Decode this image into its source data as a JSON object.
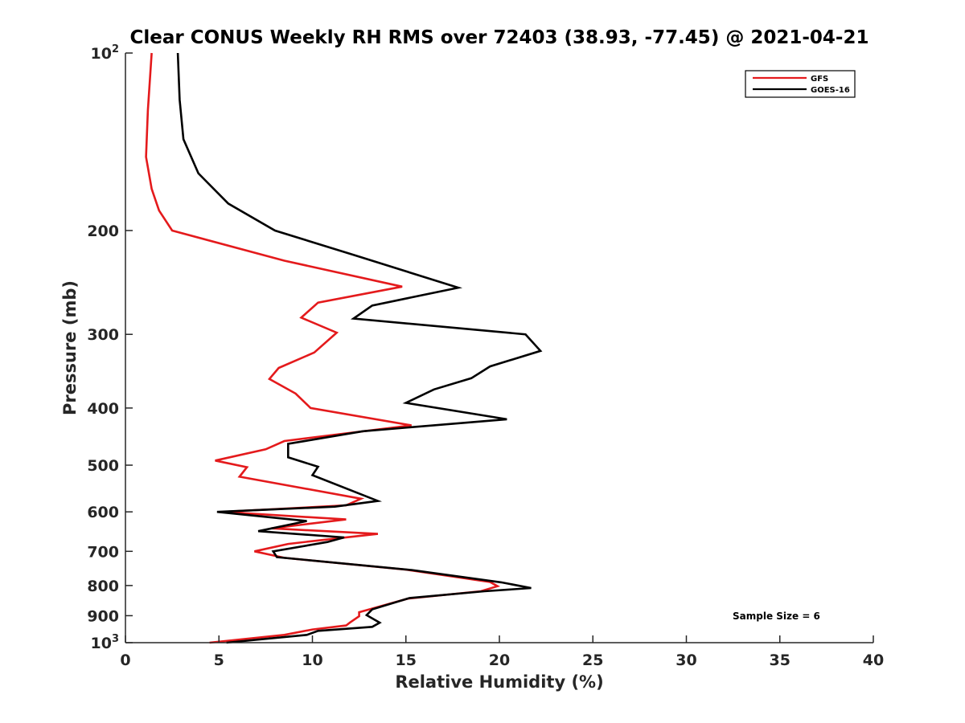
{
  "chart_data": {
    "type": "line",
    "title": "Clear CONUS Weekly RH RMS over 72403 (38.93, -77.45) @ 2021-04-21",
    "xlabel": "Relative Humidity (%)",
    "ylabel": "Pressure (mb)",
    "xlim": [
      0,
      40
    ],
    "ylim": [
      100,
      1000
    ],
    "y_scale": "log",
    "y_reversed": true,
    "x_ticks": [
      "0",
      "5",
      "10",
      "15",
      "20",
      "25",
      "30",
      "35",
      "40"
    ],
    "y_ticks": [
      {
        "value": 100,
        "label": "10",
        "sup": "2"
      },
      {
        "value": 200,
        "label": "200",
        "sup": ""
      },
      {
        "value": 300,
        "label": "300",
        "sup": ""
      },
      {
        "value": 400,
        "label": "400",
        "sup": ""
      },
      {
        "value": 500,
        "label": "500",
        "sup": ""
      },
      {
        "value": 600,
        "label": "600",
        "sup": ""
      },
      {
        "value": 700,
        "label": "700",
        "sup": ""
      },
      {
        "value": 800,
        "label": "800",
        "sup": ""
      },
      {
        "value": 900,
        "label": "900",
        "sup": ""
      },
      {
        "value": 1000,
        "label": "10",
        "sup": "3"
      }
    ],
    "legend": {
      "placement": "top-right",
      "entries": [
        "GFS",
        "GOES-16"
      ]
    },
    "annotation": "Sample Size = 6",
    "series": [
      {
        "name": "GFS",
        "color": "#e41a1c",
        "points": [
          [
            1.4,
            100
          ],
          [
            1.2,
            125
          ],
          [
            1.1,
            150
          ],
          [
            1.4,
            170
          ],
          [
            1.8,
            185
          ],
          [
            2.5,
            200
          ],
          [
            8.5,
            225
          ],
          [
            14.8,
            249
          ],
          [
            10.3,
            265
          ],
          [
            9.4,
            281
          ],
          [
            11.3,
            298
          ],
          [
            10.1,
            322
          ],
          [
            8.2,
            342
          ],
          [
            7.7,
            357
          ],
          [
            9.1,
            378
          ],
          [
            9.9,
            400
          ],
          [
            15.3,
            428
          ],
          [
            8.5,
            455
          ],
          [
            7.5,
            470
          ],
          [
            4.8,
            491
          ],
          [
            6.5,
            504
          ],
          [
            6.1,
            523
          ],
          [
            12.6,
            570
          ],
          [
            11.8,
            585
          ],
          [
            5.2,
            600
          ],
          [
            11.8,
            618
          ],
          [
            7.8,
            640
          ],
          [
            13.5,
            654
          ],
          [
            10.5,
            670
          ],
          [
            8.7,
            680
          ],
          [
            6.9,
            700
          ],
          [
            8.5,
            718
          ],
          [
            15.0,
            752
          ],
          [
            19.5,
            789
          ],
          [
            19.9,
            802
          ],
          [
            19.0,
            818
          ],
          [
            15.1,
            842
          ],
          [
            12.5,
            888
          ],
          [
            12.5,
            902
          ],
          [
            12.0,
            925
          ],
          [
            11.8,
            935
          ],
          [
            10.0,
            950
          ],
          [
            8.5,
            970
          ],
          [
            4.5,
            1000
          ]
        ]
      },
      {
        "name": "GOES-16",
        "color": "#000000",
        "points": [
          [
            2.8,
            100
          ],
          [
            2.9,
            120
          ],
          [
            3.1,
            140
          ],
          [
            3.9,
            160
          ],
          [
            5.5,
            180
          ],
          [
            8.0,
            200
          ],
          [
            12.2,
            220
          ],
          [
            17.8,
            250
          ],
          [
            13.2,
            268
          ],
          [
            12.2,
            282
          ],
          [
            21.4,
            300
          ],
          [
            22.2,
            320
          ],
          [
            19.5,
            340
          ],
          [
            18.5,
            356
          ],
          [
            16.5,
            372
          ],
          [
            15.0,
            392
          ],
          [
            20.4,
            418
          ],
          [
            12.7,
            438
          ],
          [
            8.7,
            460
          ],
          [
            8.7,
            485
          ],
          [
            10.3,
            503
          ],
          [
            10.0,
            520
          ],
          [
            13.5,
            575
          ],
          [
            11.2,
            588
          ],
          [
            4.9,
            600
          ],
          [
            9.7,
            622
          ],
          [
            7.1,
            647
          ],
          [
            11.7,
            663
          ],
          [
            10.8,
            675
          ],
          [
            7.9,
            700
          ],
          [
            8.1,
            716
          ],
          [
            15.3,
            753
          ],
          [
            20.1,
            790
          ],
          [
            21.7,
            808
          ],
          [
            19.2,
            818
          ],
          [
            15.2,
            840
          ],
          [
            13.2,
            878
          ],
          [
            12.9,
            898
          ],
          [
            13.6,
            925
          ],
          [
            13.2,
            940
          ],
          [
            10.3,
            955
          ],
          [
            9.7,
            970
          ],
          [
            5.4,
            1000
          ]
        ]
      }
    ]
  }
}
